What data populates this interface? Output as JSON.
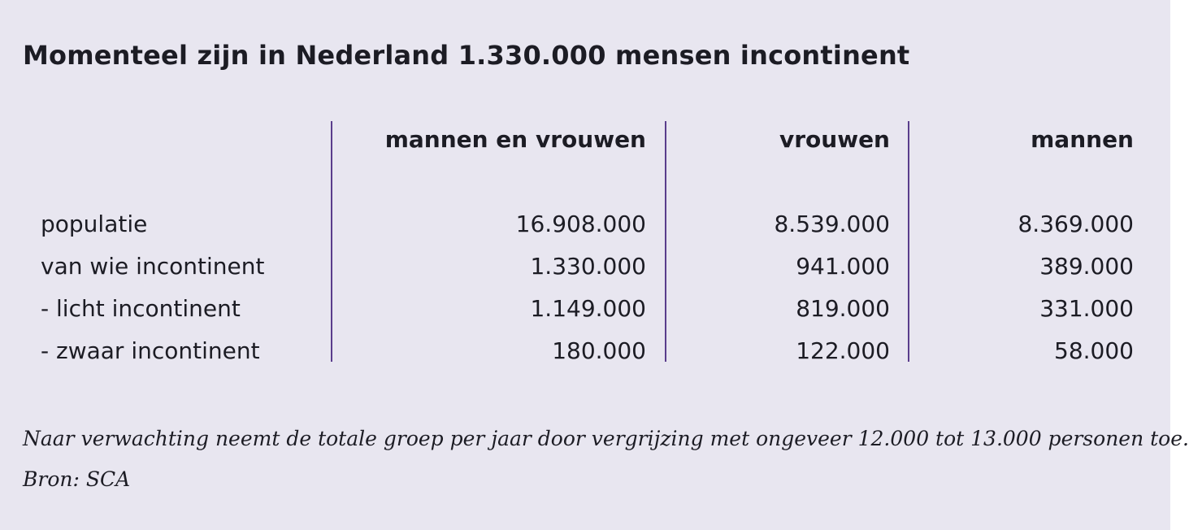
{
  "title": "Momenteel zijn in Nederland 1.330.000 mensen incontinent",
  "table": {
    "columns": [
      "mannen en vrouwen",
      "vrouwen",
      "mannen"
    ],
    "rows": [
      {
        "label": "populatie",
        "values": [
          "16.908.000",
          "8.539.000",
          "8.369.000"
        ]
      },
      {
        "label": "van wie incontinent",
        "values": [
          "1.330.000",
          "941.000",
          "389.000"
        ]
      },
      {
        "label": "- licht incontinent",
        "values": [
          "1.149.000",
          "819.000",
          "331.000"
        ]
      },
      {
        "label": "- zwaar incontinent",
        "values": [
          "180.000",
          "122.000",
          "58.000"
        ]
      }
    ]
  },
  "footnote": "Naar verwachting neemt de totale groep per jaar door vergrijzing met ongeveer 12.000 tot 13.000 personen toe.",
  "source": "Bron: SCA",
  "colors": {
    "background": "#e8e6f0",
    "divider": "#5a3d8c",
    "text": "#1c1c24"
  }
}
